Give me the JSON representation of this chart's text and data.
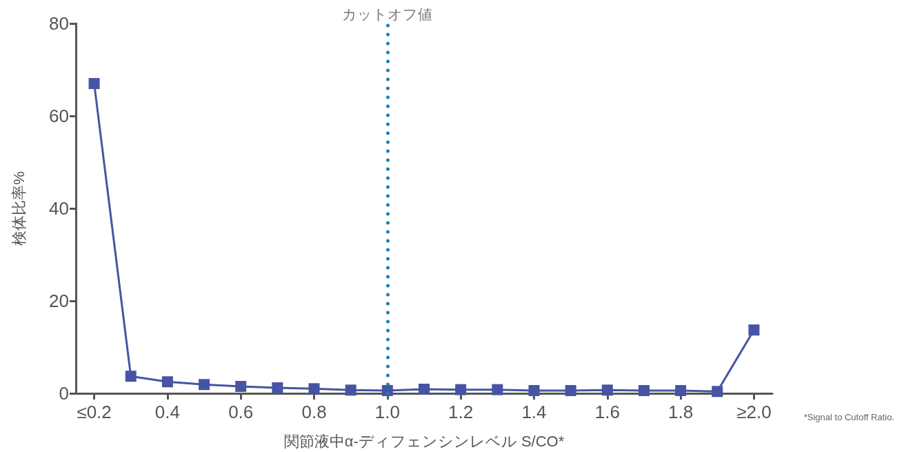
{
  "chart_data": {
    "type": "line",
    "xlabel": "関節液中α-ディフェンシンレベル S/CO*",
    "ylabel": "検体比率%",
    "categories": [
      "≤0.2",
      null,
      "0.4",
      null,
      "0.6",
      null,
      "0.8",
      null,
      "1.0",
      null,
      "1.2",
      null,
      "1.4",
      null,
      "1.6",
      null,
      "1.8",
      null,
      "≥2.0"
    ],
    "series": [
      {
        "color": "#4654a3",
        "values": [
          67,
          3.7,
          2.5,
          1.9,
          1.5,
          1.2,
          1.0,
          0.7,
          0.6,
          0.9,
          0.8,
          0.8,
          0.6,
          0.6,
          0.7,
          0.6,
          0.6,
          0.4,
          13.7
        ]
      }
    ],
    "ylim": [
      0,
      80
    ],
    "yticks": [
      0,
      20,
      40,
      60,
      80
    ],
    "grid": false,
    "marker": "square",
    "line_style": "solid",
    "ref_lines": [
      {
        "axis": "x",
        "value": "1.0",
        "label": "カットオフ値",
        "color": "#1a7fb8",
        "line_style": "dotted"
      }
    ],
    "annotations": [
      "*Signal to Cutoff Ratio."
    ]
  }
}
